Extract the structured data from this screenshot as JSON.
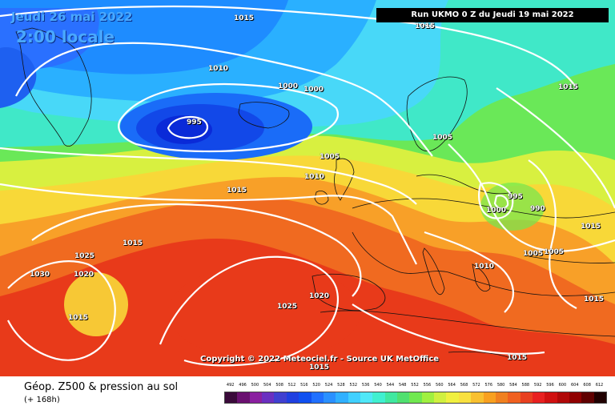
{
  "header": {
    "date_label": "Jeudi 26 mai 2022",
    "hour_label": "2:00 locale",
    "run_label": "Run UKMO 0 Z du Jeudi 19 mai 2022"
  },
  "map": {
    "isobar_labels": [
      "1015",
      "1015",
      "1010",
      "1000",
      "1000",
      "995",
      "1015",
      "1005",
      "1005",
      "1010",
      "1015",
      "995",
      "1000",
      "990",
      "1015",
      "1015",
      "1025",
      "1020",
      "1030",
      "1015",
      "1010",
      "1005",
      "1005",
      "1025",
      "1020",
      "1015",
      "1015",
      "1015"
    ],
    "copyright": "Copyright © 2022 Meteociel.fr - Source UK MetOffice"
  },
  "footer": {
    "title": "Géop. Z500 & pression au sol",
    "subtitle": "(+ 168h)",
    "scale_values": [
      "492",
      "496",
      "500",
      "504",
      "508",
      "512",
      "516",
      "520",
      "524",
      "528",
      "532",
      "536",
      "540",
      "544",
      "548",
      "552",
      "556",
      "560",
      "564",
      "568",
      "572",
      "576",
      "580",
      "584",
      "588",
      "592",
      "596",
      "600",
      "604",
      "608",
      "612"
    ],
    "scale_colors": [
      "#3a0a3a",
      "#6a1070",
      "#8a20a0",
      "#6a30c0",
      "#4040d0",
      "#2040e0",
      "#1050f0",
      "#2070ff",
      "#2a90ff",
      "#30b0ff",
      "#40d0ff",
      "#50e8f8",
      "#40f0d0",
      "#40e8a0",
      "#50e070",
      "#70e850",
      "#a0f040",
      "#d0f040",
      "#f0f040",
      "#f8e040",
      "#f8c030",
      "#f8a020",
      "#f08020",
      "#f06020",
      "#e84020",
      "#e82020",
      "#d01010",
      "#b00808",
      "#900000",
      "#600000",
      "#200000"
    ]
  }
}
